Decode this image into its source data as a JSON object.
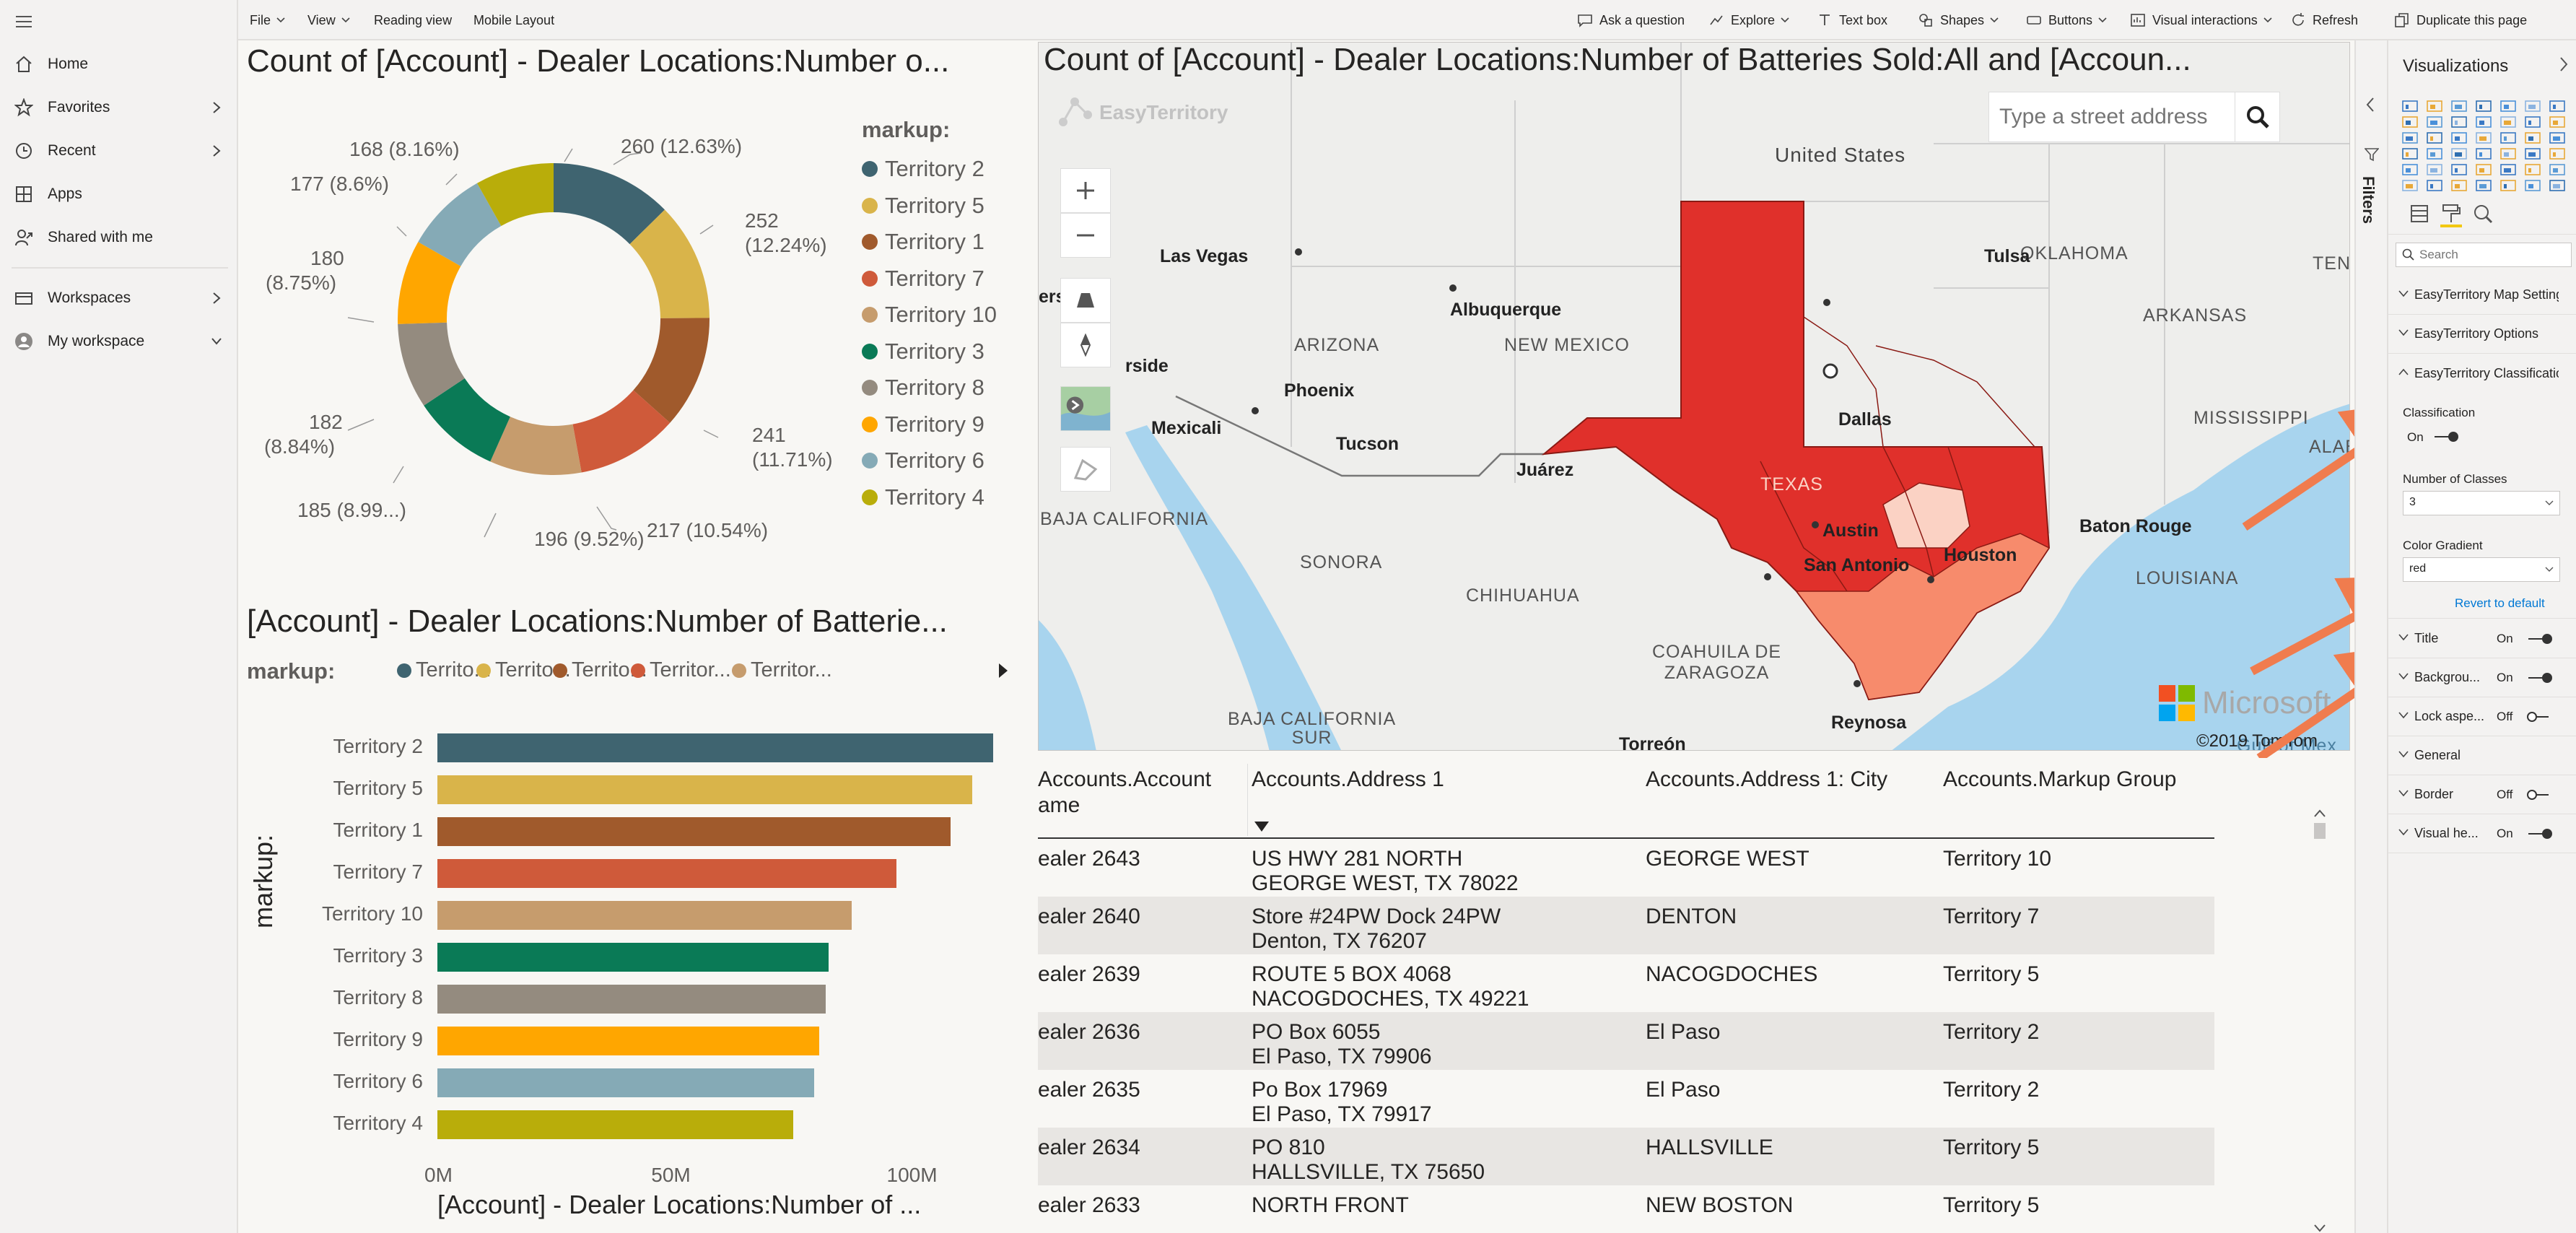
{
  "nav": {
    "items": [
      {
        "label": "Home",
        "icon": "home-icon"
      },
      {
        "label": "Favorites",
        "icon": "star-icon"
      },
      {
        "label": "Recent",
        "icon": "clock-icon"
      },
      {
        "label": "Apps",
        "icon": "apps-icon"
      },
      {
        "label": "Shared with me",
        "icon": "share-icon"
      }
    ],
    "workspaces": "Workspaces",
    "my_workspace": "My workspace"
  },
  "toolbar": {
    "file": "File",
    "view": "View",
    "reading_view": "Reading view",
    "mobile_layout": "Mobile Layout",
    "ask_question": "Ask a question",
    "explore": "Explore",
    "text_box": "Text box",
    "shapes": "Shapes",
    "buttons": "Buttons",
    "visual_interactions": "Visual interactions",
    "refresh": "Refresh",
    "duplicate": "Duplicate this page"
  },
  "donut": {
    "title": "Count of [Account] - Dealer Locations:Number o...",
    "legend_title": "markup:",
    "labels": {
      "t2": "260 (12.63%)",
      "t5a": "252",
      "t5b": "(12.24%)",
      "t1a": "241",
      "t1b": "(11.71%)",
      "t7": "217 (10.54%)",
      "t10": "196 (9.52%)",
      "t3": "185 (8.99...)",
      "t8a": "182",
      "t8b": "(8.84%)",
      "t9a": "180",
      "t9b": "(8.75%)",
      "t6": "177 (8.6%)",
      "t4": "168 (8.16%)"
    }
  },
  "chart_data": [
    {
      "type": "pie",
      "title": "Count of [Account] - Dealer Locations:Number o...",
      "legend_title": "markup:",
      "categories": [
        "Territory 2",
        "Territory 5",
        "Territory 1",
        "Territory 7",
        "Territory 10",
        "Territory 3",
        "Territory 8",
        "Territory 9",
        "Territory 6",
        "Territory 4"
      ],
      "values": [
        260,
        252,
        241,
        217,
        196,
        185,
        182,
        180,
        177,
        168
      ],
      "colors": [
        "#3f6470",
        "#d9b44a",
        "#a05a2c",
        "#cf5a3a",
        "#c69c6d",
        "#0a7a56",
        "#948b7f",
        "#ffa600",
        "#85aab6",
        "#b9ad0a"
      ]
    },
    {
      "type": "bar",
      "title": "[Account] - Dealer Locations:Number of Batterie...",
      "legend_title": "markup:",
      "legend_items": [
        "Territo...",
        "Territo...",
        "Territo...",
        "Territor...",
        "Territor..."
      ],
      "categories": [
        "Territory 2",
        "Territory 5",
        "Territory 1",
        "Territory 7",
        "Territory 10",
        "Territory 3",
        "Territory 8",
        "Territory 9",
        "Territory 6",
        "Territory 4"
      ],
      "values": [
        118,
        113.5,
        109,
        97.5,
        88,
        83,
        82.5,
        81,
        80,
        75.5
      ],
      "colors": [
        "#3f6470",
        "#d9b44a",
        "#a05a2c",
        "#cf5a3a",
        "#c69c6d",
        "#0a7a56",
        "#948b7f",
        "#ffa600",
        "#85aab6",
        "#b9ad0a"
      ],
      "unit": "M",
      "xlim": [
        0,
        118
      ],
      "xticks": [
        "0M",
        "50M",
        "100M"
      ],
      "xlabel": "[Account] - Dealer Locations:Number of ...",
      "ylabel": "markup:"
    }
  ],
  "map": {
    "title": "Count of [Account] - Dealer Locations:Number of Batteries Sold:All and [Accoun...",
    "logo": "EasyTerritory",
    "search_placeholder": "Type a street address",
    "credit": "©2019 TomTom",
    "microsoft": "Microsoft",
    "labels": {
      "us": "United States",
      "oklahoma": "OKLAHOMA",
      "arkansas": "ARKANSAS",
      "arizona": "ARIZONA",
      "newmexico": "NEW MEXICO",
      "texas": "TEXAS",
      "louisiana": "LOUISIANA",
      "mississippi": "MISSISSIPPI",
      "sonora": "SONORA",
      "chihuahua": "CHIHUAHUA",
      "coahuila1": "COAHUILA DE",
      "coahuila2": "ZARAGOZA",
      "bajacal": "BAJA CALIFORNIA",
      "bajacalsur1": "BAJA CALIFORNIA",
      "bajacalsur2": "SUR",
      "tenn": "TENN",
      "alaba": "ALABA",
      "gulf": "Gulf of Mex"
    },
    "cities": {
      "lasvegas": "Las Vegas",
      "tulsa": "Tulsa",
      "albuquerque": "Albuquerque",
      "phoenix": "Phoenix",
      "mexicali": "Mexicali",
      "tucson": "Tucson",
      "juarez": "Juárez",
      "dallas": "Dallas",
      "austin": "Austin",
      "sanantonio": "San Antonio",
      "houston": "Houston",
      "batonrouge": "Baton Rouge",
      "reynosa": "Reynosa",
      "torreon": "Torreón",
      "rside": "rside",
      "ers": "ers"
    }
  },
  "table": {
    "headers": [
      "Accounts.Account Name",
      "Accounts.Address 1",
      "Accounts.Address 1: City",
      "Accounts.Markup Group"
    ],
    "header_name_l1": "Accounts.Account",
    "header_name_l2": "ame",
    "rows": [
      {
        "name": "ealer 2643",
        "addr1": "US HWY 281 NORTH",
        "addr2": "GEORGE WEST, TX 78022",
        "city": "GEORGE WEST",
        "group": "Territory 10"
      },
      {
        "name": "ealer 2640",
        "addr1": "Store #24PW Dock 24PW",
        "addr2": "Denton, TX 76207",
        "city": "DENTON",
        "group": "Territory 7"
      },
      {
        "name": "ealer 2639",
        "addr1": "ROUTE 5 BOX 4068",
        "addr2": "NACOGDOCHES, TX 49221",
        "city": "NACOGDOCHES",
        "group": "Territory 5"
      },
      {
        "name": "ealer 2636",
        "addr1": "PO Box 6055",
        "addr2": "El Paso, TX 79906",
        "city": "El Paso",
        "group": "Territory 2"
      },
      {
        "name": "ealer 2635",
        "addr1": "Po Box 17969",
        "addr2": "El Paso, TX 79917",
        "city": "El Paso",
        "group": "Territory 2"
      },
      {
        "name": "ealer 2634",
        "addr1": "PO 810",
        "addr2": "HALLSVILLE, TX 75650",
        "city": "HALLSVILLE",
        "group": "Territory 5"
      },
      {
        "name": "ealer 2633",
        "addr1": "NORTH FRONT",
        "addr2": "",
        "city": "NEW BOSTON",
        "group": "Territory 5"
      }
    ]
  },
  "filters": {
    "label": "Filters"
  },
  "viz": {
    "title": "Visualizations",
    "search_placeholder": "Search",
    "sections": {
      "map_settings": "EasyTerritory Map Settings",
      "options": "EasyTerritory Options",
      "classification": "EasyTerritory Classification",
      "title": "Title",
      "background": "Backgrou...",
      "lock_aspect": "Lock aspe...",
      "general": "General",
      "border": "Border",
      "visual_header": "Visual he..."
    },
    "classification_label": "Classification",
    "classification_state": "On",
    "num_classes_label": "Number of Classes",
    "num_classes_value": "3",
    "color_gradient_label": "Color Gradient",
    "color_gradient_value": "red",
    "revert": "Revert to default",
    "title_state": "On",
    "background_state": "On",
    "lock_state": "Off",
    "border_state": "Off",
    "visual_header_state": "On"
  },
  "colors": {
    "t2": "#3f6470",
    "t5": "#d9b44a",
    "t1": "#a05a2c",
    "t7": "#cf5a3a",
    "t10": "#c69c6d",
    "t3": "#0a7a56",
    "t8": "#948b7f",
    "t9": "#ffa600",
    "t6": "#85aab6",
    "t4": "#b9ad0a",
    "texas_red": "#e0302b",
    "texas_light": "#f78b6c",
    "annot_arrow": "#f07c4e"
  }
}
